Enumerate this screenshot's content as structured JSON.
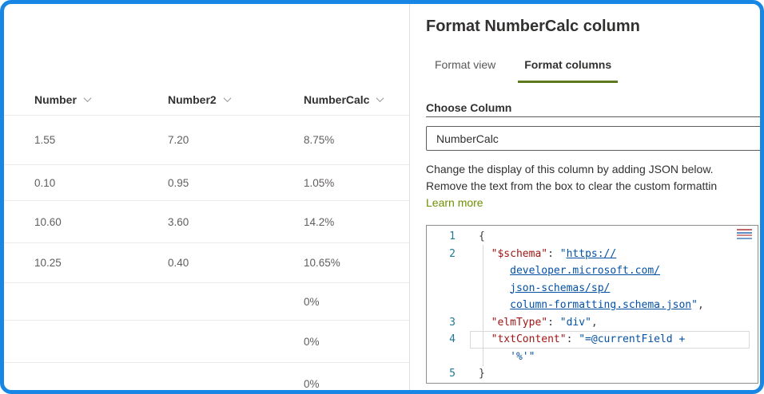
{
  "colors": {
    "frame_blue": "#1786e5",
    "tab_underline_green": "#5d7a1e",
    "link_green": "#6f9000",
    "code_key_red": "#a31515",
    "code_value_blue": "#0451a5",
    "line_number_teal": "#237893"
  },
  "list": {
    "columns": [
      {
        "label": "Number"
      },
      {
        "label": "Number2"
      },
      {
        "label": "NumberCalc"
      }
    ],
    "rows": [
      [
        "1.55",
        "7.20",
        "8.75%"
      ],
      [
        "0.10",
        "0.95",
        "1.05%"
      ],
      [
        "10.60",
        "3.60",
        "14.2%"
      ],
      [
        "10.25",
        "0.40",
        "10.65%"
      ],
      [
        "",
        "",
        "0%"
      ],
      [
        "",
        "",
        "0%"
      ],
      [
        "",
        "",
        "0%"
      ]
    ]
  },
  "panel": {
    "title": "Format NumberCalc column",
    "tabs": [
      {
        "label": "Format view",
        "selected": false
      },
      {
        "label": "Format columns",
        "selected": true
      }
    ],
    "choose_column_label": "Choose Column",
    "column_dropdown_value": "NumberCalc",
    "description_lines": [
      "Change the display of this column by adding JSON below.",
      "Remove the text from the box to clear the custom formattin"
    ],
    "learn_more_label": "Learn more",
    "editor": {
      "rows": [
        {
          "num": "1",
          "segments": [
            {
              "t": "{",
              "c": "pun"
            }
          ]
        },
        {
          "num": "2",
          "segments": [
            {
              "t": "  ",
              "c": "pun"
            },
            {
              "t": "\"$schema\"",
              "c": "key"
            },
            {
              "t": ": ",
              "c": "pun"
            },
            {
              "t": "\"",
              "c": "str"
            },
            {
              "t": "https://",
              "c": "lnk"
            }
          ]
        },
        {
          "num": "",
          "segments": [
            {
              "t": "     ",
              "c": "pun"
            },
            {
              "t": "developer.microsoft.com/",
              "c": "lnk"
            }
          ]
        },
        {
          "num": "",
          "segments": [
            {
              "t": "     ",
              "c": "pun"
            },
            {
              "t": "json-schemas/sp/",
              "c": "lnk"
            }
          ]
        },
        {
          "num": "",
          "segments": [
            {
              "t": "     ",
              "c": "pun"
            },
            {
              "t": "column-formatting.schema.json",
              "c": "lnk"
            },
            {
              "t": "\"",
              "c": "str"
            },
            {
              "t": ",",
              "c": "pun"
            }
          ]
        },
        {
          "num": "3",
          "segments": [
            {
              "t": "  ",
              "c": "pun"
            },
            {
              "t": "\"elmType\"",
              "c": "key"
            },
            {
              "t": ": ",
              "c": "pun"
            },
            {
              "t": "\"div\"",
              "c": "str"
            },
            {
              "t": ",",
              "c": "pun"
            }
          ]
        },
        {
          "num": "4",
          "hl": true,
          "segments": [
            {
              "t": "  ",
              "c": "pun"
            },
            {
              "t": "\"txtContent\"",
              "c": "key"
            },
            {
              "t": ": ",
              "c": "pun"
            },
            {
              "t": "\"=@currentField +",
              "c": "str"
            }
          ]
        },
        {
          "num": "",
          "segments": [
            {
              "t": "     ",
              "c": "pun"
            },
            {
              "t": "'%'\"",
              "c": "str"
            }
          ]
        },
        {
          "num": "5",
          "segments": [
            {
              "t": "}",
              "c": "pun"
            }
          ]
        }
      ]
    }
  }
}
